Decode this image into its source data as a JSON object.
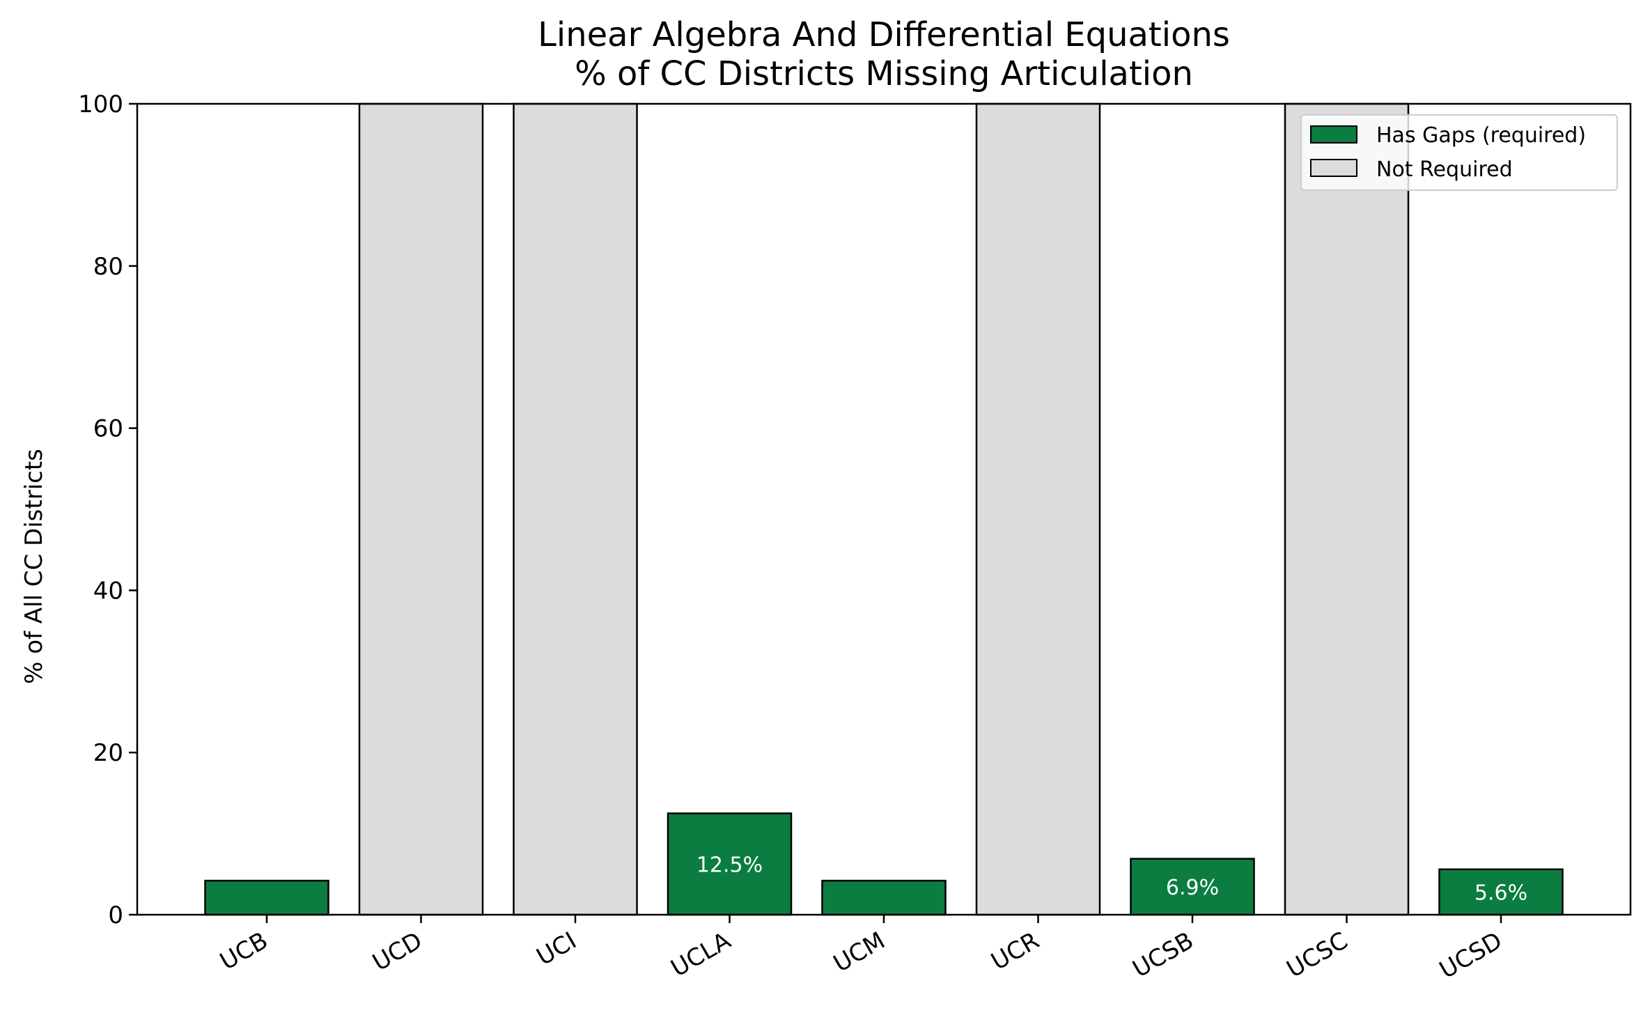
{
  "chart_data": {
    "type": "bar",
    "title": "Linear Algebra And Differential Equations",
    "subtitle": "% of CC Districts Missing Articulation",
    "xlabel": "",
    "ylabel": "% of All CC Districts",
    "ylim": [
      0,
      100
    ],
    "yticks": [
      0,
      20,
      40,
      60,
      80,
      100
    ],
    "categories": [
      "UCB",
      "UCD",
      "UCI",
      "UCLA",
      "UCM",
      "UCR",
      "UCSB",
      "UCSC",
      "UCSD"
    ],
    "series": [
      {
        "name": "Has Gaps (required)",
        "color": "#0b7d40",
        "values": [
          4.2,
          null,
          null,
          12.5,
          4.2,
          null,
          6.9,
          null,
          5.6
        ],
        "labels": [
          "",
          "",
          "",
          "12.5%",
          "",
          "",
          "6.9%",
          "",
          "5.6%"
        ]
      },
      {
        "name": "Not Required",
        "color": "#dcdcdc",
        "values": [
          null,
          100,
          100,
          null,
          null,
          100,
          null,
          100,
          null
        ]
      }
    ],
    "legend_position": "upper right",
    "grid": false
  }
}
